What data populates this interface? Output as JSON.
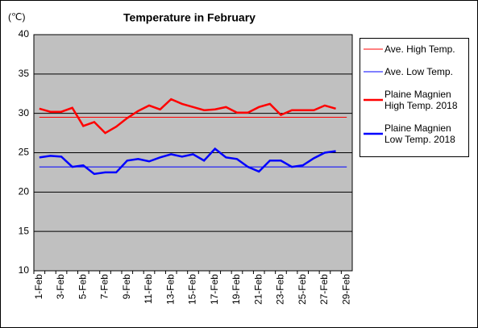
{
  "chart_data": {
    "type": "line",
    "title": "Temperature in February",
    "ylabel": "(℃)",
    "categories": [
      "1-Feb",
      null,
      "3-Feb",
      null,
      "5-Feb",
      null,
      "7-Feb",
      null,
      "9-Feb",
      null,
      "11-Feb",
      null,
      "13-Feb",
      null,
      "15-Feb",
      null,
      "17-Feb",
      null,
      "19-Feb",
      null,
      "21-Feb",
      null,
      "23-Feb",
      null,
      "25-Feb",
      null,
      "27-Feb",
      null,
      "29-Feb"
    ],
    "series": [
      {
        "name": "Ave. High Temp.",
        "color": "#ff0000",
        "line_width": 1,
        "values": [
          29.5,
          29.5,
          29.5,
          29.5,
          29.5,
          29.5,
          29.5,
          29.5,
          29.5,
          29.5,
          29.5,
          29.5,
          29.5,
          29.5,
          29.5,
          29.5,
          29.5,
          29.5,
          29.5,
          29.5,
          29.5,
          29.5,
          29.5,
          29.5,
          29.5,
          29.5,
          29.5,
          29.5,
          29.5
        ]
      },
      {
        "name": "Ave. Low Temp.",
        "color": "#0000ff",
        "line_width": 1,
        "values": [
          23.2,
          23.2,
          23.2,
          23.2,
          23.2,
          23.2,
          23.2,
          23.2,
          23.2,
          23.2,
          23.2,
          23.2,
          23.2,
          23.2,
          23.2,
          23.2,
          23.2,
          23.2,
          23.2,
          23.2,
          23.2,
          23.2,
          23.2,
          23.2,
          23.2,
          23.2,
          23.2,
          23.2,
          23.2
        ]
      },
      {
        "name": "Plaine Magnien High Temp. 2018",
        "color": "#ff0000",
        "line_width": 2.5,
        "values": [
          30.6,
          30.2,
          30.2,
          30.7,
          28.4,
          28.9,
          27.5,
          28.3,
          29.4,
          30.3,
          31.0,
          30.5,
          31.8,
          31.2,
          30.8,
          30.4,
          30.5,
          30.8,
          30.1,
          30.1,
          30.8,
          31.2,
          29.8,
          30.4,
          30.4,
          30.4,
          31.0,
          30.6,
          null
        ]
      },
      {
        "name": "Plaine Magnien Low Temp. 2018",
        "color": "#0000ff",
        "line_width": 2.5,
        "values": [
          24.4,
          24.6,
          24.5,
          23.2,
          23.4,
          22.3,
          22.5,
          22.5,
          24.0,
          24.2,
          23.9,
          24.4,
          24.8,
          24.5,
          24.8,
          24.0,
          25.5,
          24.4,
          24.2,
          23.2,
          22.6,
          24.0,
          24.0,
          23.2,
          23.4,
          24.3,
          25.0,
          25.2,
          null
        ]
      }
    ],
    "ylim": [
      10,
      40
    ],
    "yticks": [
      10,
      15,
      20,
      25,
      30,
      35,
      40
    ],
    "grid": true,
    "plot_background": "#c0c0c0",
    "legend": "right"
  }
}
